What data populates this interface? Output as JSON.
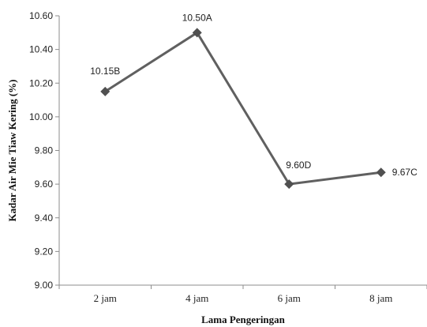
{
  "chart_data": {
    "type": "line",
    "categories": [
      "2 jam",
      "4 jam",
      "6 jam",
      "8 jam"
    ],
    "series": [
      {
        "values": [
          10.15,
          10.5,
          9.6,
          9.67
        ]
      }
    ],
    "data_labels": [
      "10.15B",
      "10.50A",
      "9.60D",
      "9.67C"
    ],
    "xlabel": "Lama Pengeringan",
    "ylabel": "Kadar Air Mie Tiaw Kering (%)",
    "ylim": [
      9.0,
      10.6
    ],
    "yticks": [
      "9.00",
      "9.20",
      "9.40",
      "9.60",
      "9.80",
      "10.00",
      "10.20",
      "10.40",
      "10.60"
    ],
    "grid": false,
    "marker": "diamond",
    "line_color": "#606060",
    "marker_color": "#505050"
  }
}
